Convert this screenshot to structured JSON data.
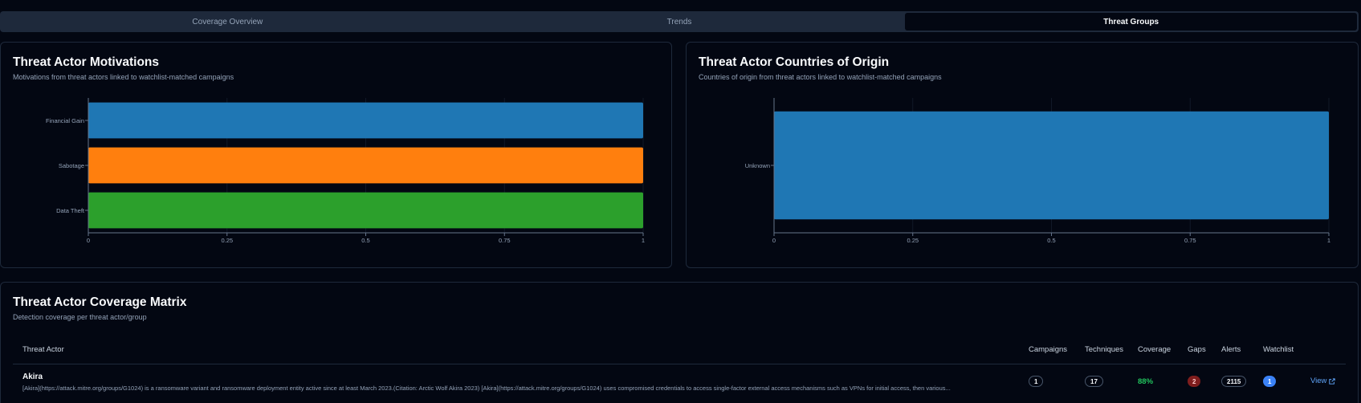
{
  "tabs": [
    {
      "label": "Coverage Overview",
      "active": false
    },
    {
      "label": "Trends",
      "active": false
    },
    {
      "label": "Threat Groups",
      "active": true
    }
  ],
  "motivations": {
    "title": "Threat Actor Motivations",
    "subtitle": "Motivations from threat actors linked to watchlist-matched campaigns"
  },
  "countries": {
    "title": "Threat Actor Countries of Origin",
    "subtitle": "Countries of origin from threat actors linked to watchlist-matched campaigns"
  },
  "matrix": {
    "title": "Threat Actor Coverage Matrix",
    "subtitle": "Detection coverage per threat actor/group",
    "columns": {
      "actor": "Threat Actor",
      "campaigns": "Campaigns",
      "techniques": "Techniques",
      "coverage": "Coverage",
      "gaps": "Gaps",
      "alerts": "Alerts",
      "watchlist": "Watchlist"
    },
    "rows": [
      {
        "name": "Akira",
        "description": "[Akira](https://attack.mitre.org/groups/G1024) is a ransomware variant and ransomware deployment entity active since at least March 2023.(Citation: Arctic Wolf Akira 2023) [Akira](https://attack.mitre.org/groups/G1024) uses compromised credentials to access single-factor external access mechanisms such as VPNs for initial access, then various...",
        "campaigns": "1",
        "techniques": "17",
        "coverage": "88%",
        "gaps": "2",
        "alerts": "2115",
        "watchlist": "1",
        "view_label": "View"
      }
    ]
  },
  "chart_data": [
    {
      "type": "bar",
      "orientation": "horizontal",
      "categories": [
        "Financial Gain",
        "Sabotage",
        "Data Theft"
      ],
      "values": [
        1,
        1,
        1
      ],
      "colors": [
        "#1f77b4",
        "#ff7f0e",
        "#2ca02c"
      ],
      "xlim": [
        0,
        1
      ],
      "xticks": [
        "0",
        "0.25",
        "0.5",
        "0.75",
        "1"
      ],
      "grid": true
    },
    {
      "type": "bar",
      "orientation": "horizontal",
      "categories": [
        "Unknown"
      ],
      "values": [
        1
      ],
      "colors": [
        "#1f77b4"
      ],
      "xlim": [
        0,
        1
      ],
      "xticks": [
        "0",
        "0.25",
        "0.5",
        "0.75",
        "1"
      ],
      "grid": true
    }
  ]
}
